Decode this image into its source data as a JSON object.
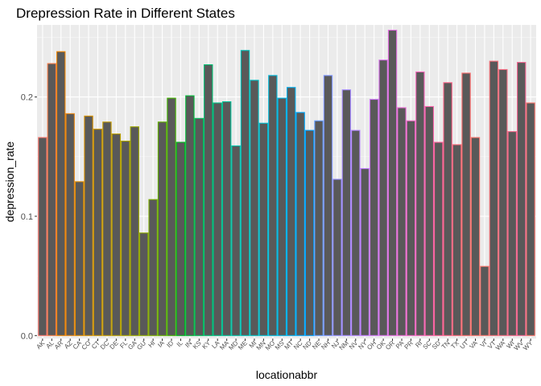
{
  "chart_data": {
    "type": "bar",
    "title": "Drepression Rate in Different States",
    "xlabel": "locationabbr",
    "ylabel": "depression_rate",
    "ylim": [
      -0.0025,
      0.2604
    ],
    "yticks": [
      0.0,
      0.1,
      0.2
    ],
    "ytick_labels": [
      "0.0",
      "0.1",
      "0.2"
    ],
    "grid": true,
    "legend": "none",
    "bar_fill": "#595959",
    "panel_background": "#ebebeb",
    "categories": [
      "AK",
      "AL",
      "AR",
      "AZ",
      "CA",
      "CO",
      "CT",
      "DC",
      "DE",
      "FL",
      "GA",
      "GU",
      "HI",
      "IA",
      "ID",
      "IL",
      "IN",
      "KS",
      "KY",
      "LA",
      "MA",
      "MD",
      "ME",
      "MI",
      "MN",
      "MO",
      "MS",
      "MT",
      "NC",
      "ND",
      "NE",
      "NH",
      "NJ",
      "NM",
      "NV",
      "NY",
      "OH",
      "OK",
      "OR",
      "PA",
      "PR",
      "RI",
      "SC",
      "SD",
      "TN",
      "TX",
      "UT",
      "VA",
      "VI",
      "VT",
      "WA",
      "WI",
      "WV",
      "WY"
    ],
    "values": [
      0.166,
      0.228,
      0.238,
      0.186,
      0.129,
      0.184,
      0.173,
      0.179,
      0.169,
      0.163,
      0.175,
      0.086,
      0.114,
      0.179,
      0.199,
      0.162,
      0.201,
      0.182,
      0.227,
      0.195,
      0.196,
      0.159,
      0.239,
      0.214,
      0.178,
      0.218,
      0.199,
      0.208,
      0.187,
      0.172,
      0.18,
      0.218,
      0.131,
      0.206,
      0.172,
      0.14,
      0.198,
      0.231,
      0.256,
      0.191,
      0.18,
      0.221,
      0.192,
      0.162,
      0.212,
      0.16,
      0.22,
      0.166,
      0.058,
      0.23,
      0.223,
      0.171,
      0.229,
      0.195
    ],
    "outline_colors": [
      "#F8766D",
      "#F47D4A",
      "#EE8402",
      "#E68613",
      "#DF8C00",
      "#D79000",
      "#CD9600",
      "#C49A00",
      "#B89E00",
      "#ABA300",
      "#9DA700",
      "#8EAB00",
      "#7CAE00",
      "#64B200",
      "#43B500",
      "#00B81F",
      "#00BA38",
      "#00BC59",
      "#00BE71",
      "#00BF86",
      "#00C097",
      "#00C1A8",
      "#00C0B8",
      "#00BFC4",
      "#00BDD0",
      "#00BADC",
      "#00B5E5",
      "#00B0F0",
      "#00A9FF",
      "#00A2FF",
      "#619CFF",
      "#7F96FF",
      "#958FFF",
      "#A58AFF",
      "#B385FF",
      "#C17FFF",
      "#CE78F5",
      "#D973EC",
      "#E36EE1",
      "#EA6BD4",
      "#F066C6",
      "#F464B8",
      "#F862A9",
      "#FA6199",
      "#FC6489",
      "#FB6778",
      "#FA6B6B",
      "#F8766D",
      "#F8766D",
      "#F56F78",
      "#F46B82",
      "#F3698C",
      "#F36793",
      "#F8766D"
    ]
  }
}
